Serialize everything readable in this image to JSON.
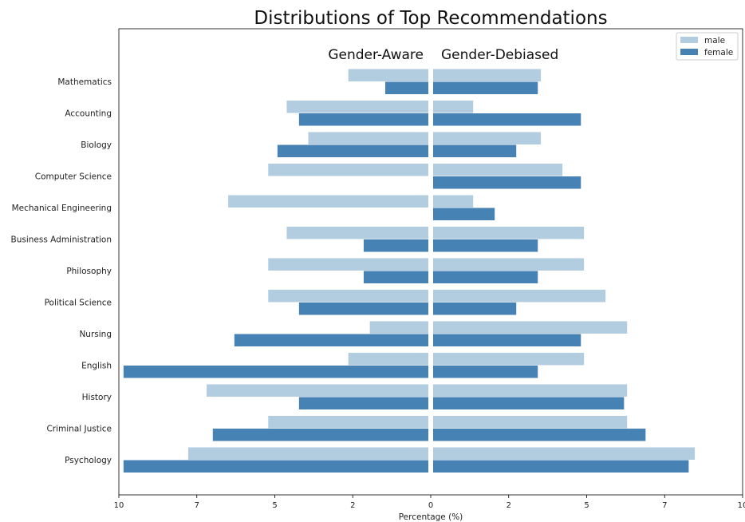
{
  "chart_data": {
    "type": "bar",
    "title": "Distributions of Top Recommendations",
    "xlabel": "Percentage (%)",
    "panels": [
      "Gender-Aware",
      "Gender-Debiased"
    ],
    "categories": [
      "Mathematics",
      "Accounting",
      "Biology",
      "Computer Science",
      "Mechanical Engineering",
      "Business Administration",
      "Philosophy",
      "Political Science",
      "Nursing",
      "English",
      "History",
      "Criminal Justice",
      "Psychology"
    ],
    "series": [
      {
        "name": "male",
        "color": "#b3cde0",
        "gender_aware": [
          2.6,
          4.6,
          3.9,
          5.2,
          6.5,
          4.6,
          5.2,
          5.2,
          1.9,
          2.6,
          7.2,
          5.2,
          7.8
        ],
        "gender_debiased": [
          3.5,
          1.3,
          3.5,
          4.2,
          1.3,
          4.9,
          4.9,
          5.6,
          6.3,
          4.9,
          6.3,
          6.3,
          8.5
        ]
      },
      {
        "name": "female",
        "color": "#4682b4",
        "gender_aware": [
          1.4,
          4.2,
          4.9,
          0,
          0,
          2.1,
          2.1,
          4.2,
          6.3,
          9.9,
          4.2,
          7.0,
          9.9
        ],
        "gender_debiased": [
          3.4,
          4.8,
          2.7,
          4.8,
          2.0,
          3.4,
          3.4,
          2.7,
          4.8,
          3.4,
          6.2,
          6.9,
          8.3
        ]
      }
    ],
    "xticks": [
      "10",
      "7",
      "5",
      "2",
      "0",
      "2",
      "5",
      "7",
      "10"
    ],
    "xlim": [
      0,
      10
    ],
    "legend_position": "top-right",
    "grid": false
  }
}
